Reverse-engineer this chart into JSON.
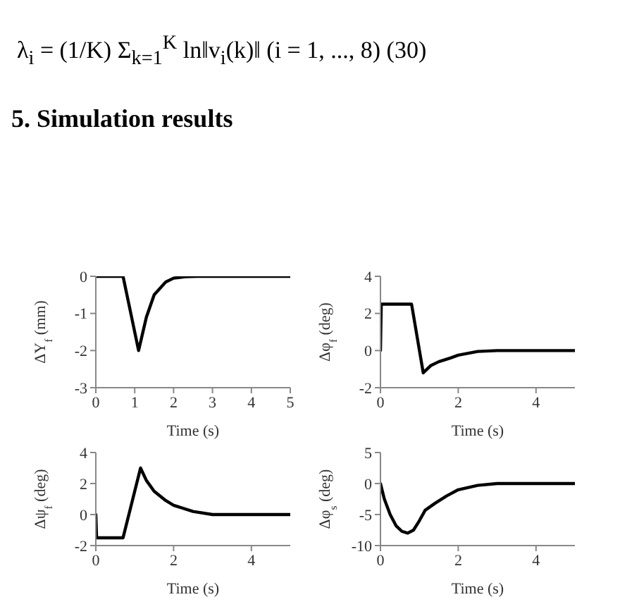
{
  "chart_data": [
    {
      "type": "line",
      "title": "5. Simulation results",
      "annotations": [
        "λ$_{i}$ = (1/K) Σ$_{k=1}$$^{K}$ ln‖v$_{i}$(k)‖     (i = 1, ..., 8)     (30)"
      ],
      "xlabel": "Time (s)",
      "ylabel": "ΔY$_{f}$ (mm)",
      "x": [
        0,
        0.7,
        0.9,
        1.1,
        1.3,
        1.5,
        1.8,
        2,
        2.3,
        2.6,
        5
      ],
      "series": [
        {
          "color": "#000000",
          "values": [
            0,
            0,
            -1,
            -2,
            -1.1,
            -0.5,
            -0.15,
            -0.05,
            -0.01,
            0,
            0
          ]
        }
      ],
      "xlim": [
        0,
        5
      ],
      "xticks": [
        0,
        1,
        2,
        3,
        4,
        5
      ],
      "ylim": [
        -3,
        0
      ],
      "yticks": [
        -3,
        -2,
        -1,
        0
      ],
      "grid": false,
      "legend": false,
      "marker": "none",
      "line_style": "solid"
    },
    {
      "type": "line",
      "xlabel": "Time (s)",
      "ylabel": "Δφ$_{f}$ (deg)",
      "x": [
        0,
        0.02,
        0.8,
        1.1,
        1.3,
        1.5,
        1.8,
        2,
        2.5,
        3,
        5
      ],
      "series": [
        {
          "color": "#000000",
          "values": [
            0,
            2.5,
            2.5,
            -1.2,
            -0.8,
            -0.6,
            -0.4,
            -0.25,
            -0.05,
            0,
            0
          ]
        }
      ],
      "xlim": [
        0,
        5
      ],
      "xticks": [
        0,
        2,
        4
      ],
      "ylim": [
        -2,
        4
      ],
      "yticks": [
        -2,
        0,
        2,
        4
      ],
      "grid": false,
      "legend": false,
      "marker": "none",
      "line_style": "solid"
    },
    {
      "type": "line",
      "xlabel": "Time (s)",
      "ylabel": "Δψ$_{f}$ (deg)",
      "x": [
        0,
        0.02,
        0.7,
        1.15,
        1.3,
        1.5,
        1.8,
        2,
        2.5,
        3,
        5
      ],
      "series": [
        {
          "color": "#000000",
          "values": [
            0,
            -1.5,
            -1.5,
            3,
            2.2,
            1.5,
            0.9,
            0.6,
            0.2,
            0,
            0
          ]
        }
      ],
      "xlim": [
        0,
        5
      ],
      "xticks": [
        0,
        2,
        4
      ],
      "ylim": [
        -2,
        4
      ],
      "yticks": [
        -2,
        0,
        2,
        4
      ],
      "grid": false,
      "legend": false,
      "marker": "none",
      "line_style": "solid"
    },
    {
      "type": "line",
      "xlabel": "Time (s)",
      "ylabel": "Δφ$_{s}$ (deg)",
      "x": [
        0,
        0.1,
        0.25,
        0.4,
        0.55,
        0.7,
        0.85,
        1,
        1.15,
        1.4,
        1.7,
        2,
        2.5,
        3,
        5
      ],
      "series": [
        {
          "color": "#000000",
          "values": [
            0,
            -2.5,
            -5,
            -6.8,
            -7.7,
            -8,
            -7.5,
            -6,
            -4.3,
            -3.2,
            -2,
            -1,
            -0.3,
            0,
            0
          ]
        }
      ],
      "xlim": [
        0,
        5
      ],
      "xticks": [
        0,
        2,
        4
      ],
      "ylim": [
        -10,
        5
      ],
      "yticks": [
        -10,
        -5,
        0,
        5
      ],
      "grid": false,
      "legend": false,
      "marker": "none",
      "line_style": "solid"
    }
  ]
}
